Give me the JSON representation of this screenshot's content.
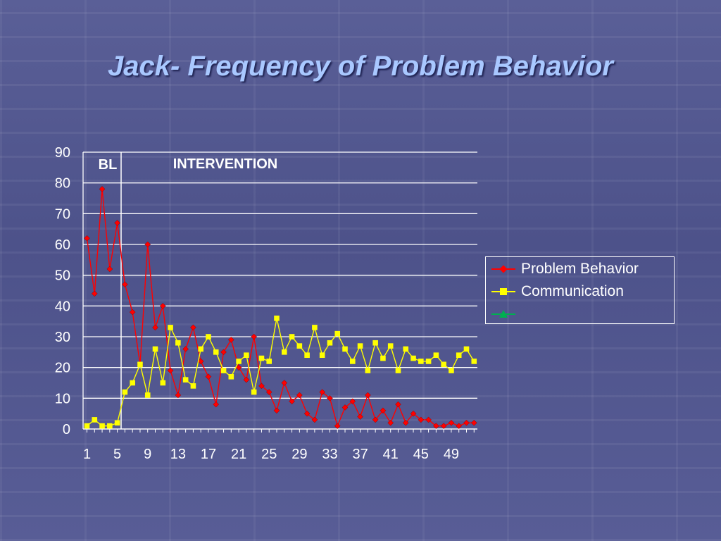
{
  "slide": {
    "title": "Jack- Frequency of Problem Behavior"
  },
  "chart_data": {
    "type": "line",
    "title": "",
    "ylim": [
      0,
      90
    ],
    "y_ticks": [
      0,
      10,
      20,
      30,
      40,
      50,
      60,
      70,
      80,
      90
    ],
    "x_ticks": [
      1,
      5,
      9,
      13,
      17,
      21,
      25,
      29,
      33,
      37,
      41,
      45,
      49
    ],
    "x_range": [
      1,
      52
    ],
    "grid": "horizontal",
    "phase_line_after_session": 5,
    "phases": [
      {
        "label": "BL"
      },
      {
        "label": "INTERVENTION"
      }
    ],
    "legend_position": "right",
    "series": [
      {
        "name": "Problem Behavior",
        "color": "#ff0000",
        "marker": "diamond",
        "values": [
          62,
          44,
          78,
          52,
          67,
          47,
          38,
          21,
          60,
          33,
          40,
          19,
          11,
          26,
          33,
          22,
          17,
          8,
          25,
          29,
          20,
          16,
          30,
          14,
          12,
          6,
          15,
          9,
          11,
          5,
          3,
          12,
          10,
          1,
          7,
          9,
          4,
          11,
          3,
          6,
          2,
          8,
          2,
          5,
          3,
          3,
          1,
          1,
          2,
          1,
          2,
          2
        ]
      },
      {
        "name": "Communication",
        "color": "#ffff00",
        "marker": "square",
        "values": [
          1,
          3,
          1,
          1,
          2,
          12,
          15,
          21,
          11,
          26,
          15,
          33,
          28,
          16,
          14,
          26,
          30,
          25,
          19,
          17,
          22,
          24,
          12,
          23,
          22,
          36,
          25,
          30,
          27,
          24,
          33,
          24,
          28,
          31,
          26,
          22,
          27,
          19,
          28,
          23,
          27,
          19,
          26,
          23,
          22,
          22,
          24,
          21,
          19,
          24,
          26,
          22
        ]
      },
      {
        "name": "",
        "color": "#00b050",
        "marker": "triangle",
        "values": []
      }
    ]
  }
}
